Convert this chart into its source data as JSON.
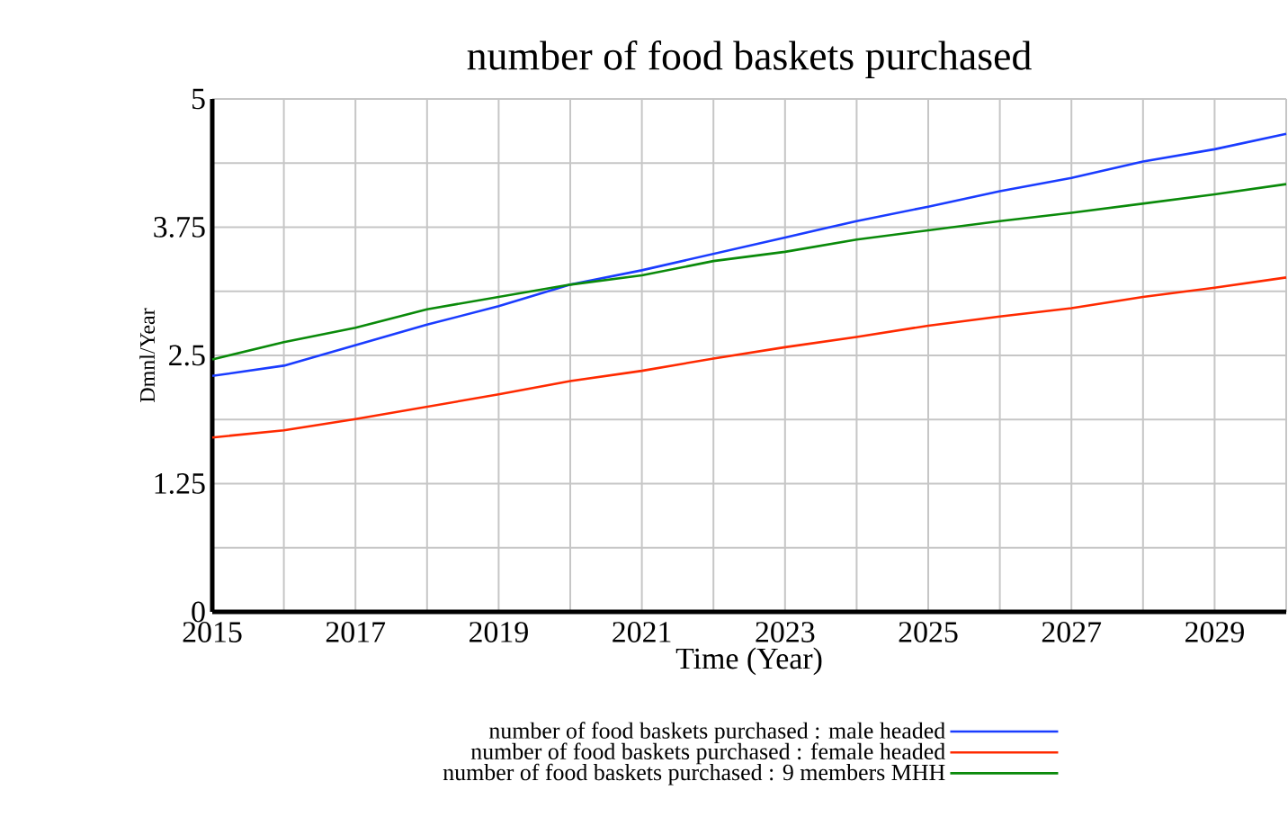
{
  "chart_data": {
    "type": "line",
    "title": "number of food baskets purchased",
    "xlabel": "Time (Year)",
    "ylabel": "Dmnl/Year",
    "x": [
      2015,
      2016,
      2017,
      2018,
      2019,
      2020,
      2021,
      2022,
      2023,
      2024,
      2025,
      2026,
      2027,
      2028,
      2029,
      2030
    ],
    "series": [
      {
        "name": "number of food baskets purchased : male headed",
        "color": "#1a3cff",
        "values": [
          2.3,
          2.4,
          2.6,
          2.8,
          2.98,
          3.19,
          3.33,
          3.49,
          3.65,
          3.81,
          3.95,
          4.1,
          4.23,
          4.39,
          4.51,
          4.66
        ]
      },
      {
        "name": "number of food baskets purchased : female headed",
        "color": "#ff2a00",
        "values": [
          1.7,
          1.77,
          1.88,
          2.0,
          2.12,
          2.25,
          2.35,
          2.47,
          2.58,
          2.68,
          2.79,
          2.88,
          2.96,
          3.07,
          3.16,
          3.26
        ]
      },
      {
        "name": "number of food baskets purchased : 9 members MHH",
        "color": "#0a8a0a",
        "values": [
          2.46,
          2.63,
          2.77,
          2.95,
          3.07,
          3.19,
          3.28,
          3.42,
          3.51,
          3.63,
          3.72,
          3.81,
          3.89,
          3.98,
          4.07,
          4.17
        ]
      }
    ],
    "xlim": [
      2015,
      2030
    ],
    "ylim": [
      0,
      5
    ],
    "xticks": [
      2015,
      {
        "value": 2016,
        "label": null
      },
      2017,
      {
        "value": 2018,
        "label": null
      },
      2019,
      {
        "value": 2020,
        "label": null
      },
      2021,
      {
        "value": 2022,
        "label": null
      },
      2023,
      {
        "value": 2024,
        "label": null
      },
      2025,
      {
        "value": 2026,
        "label": null
      },
      2027,
      {
        "value": 2028,
        "label": null
      },
      2029,
      {
        "value": 2030,
        "label": null
      }
    ],
    "yticks": [
      0,
      {
        "value": 0.625,
        "label": null
      },
      1.25,
      {
        "value": 1.875,
        "label": null
      },
      2.5,
      {
        "value": 3.125,
        "label": null
      },
      3.75,
      {
        "value": 4.375,
        "label": null
      },
      5
    ],
    "grid": true,
    "legend": "bottom",
    "marker": "none",
    "line_style": "solid"
  }
}
